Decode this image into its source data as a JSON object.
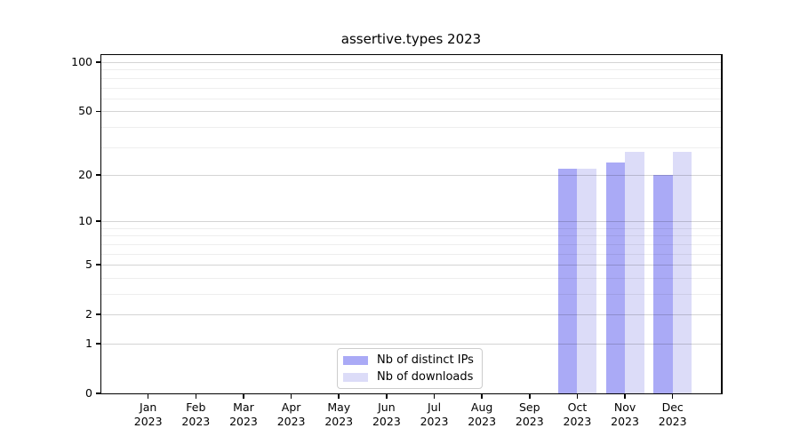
{
  "chart_data": {
    "type": "bar",
    "title": "assertive.types 2023",
    "categories": [
      "Jan",
      "Feb",
      "Mar",
      "Apr",
      "May",
      "Jun",
      "Jul",
      "Aug",
      "Sep",
      "Oct",
      "Nov",
      "Dec"
    ],
    "category_year": "2023",
    "series": [
      {
        "name": "Nb of distinct IPs",
        "color": "#aaaaf6",
        "values": [
          null,
          null,
          null,
          null,
          null,
          null,
          null,
          null,
          null,
          22,
          24,
          20
        ]
      },
      {
        "name": "Nb of downloads",
        "color": "#dcdcf8",
        "values": [
          null,
          null,
          null,
          null,
          null,
          null,
          null,
          null,
          null,
          22,
          28,
          28
        ]
      }
    ],
    "yscale": "log1p",
    "ylim": [
      0,
      112
    ],
    "y_major_ticks": [
      0,
      1,
      2,
      5,
      10,
      20,
      50,
      100
    ],
    "y_minor_ticks": [
      3,
      4,
      6,
      7,
      8,
      9,
      30,
      40,
      60,
      70,
      80,
      90
    ],
    "xlabel": "",
    "ylabel": "",
    "grid": "on",
    "legend_position": "lower center"
  },
  "figure": {
    "background": "#ffffff"
  }
}
